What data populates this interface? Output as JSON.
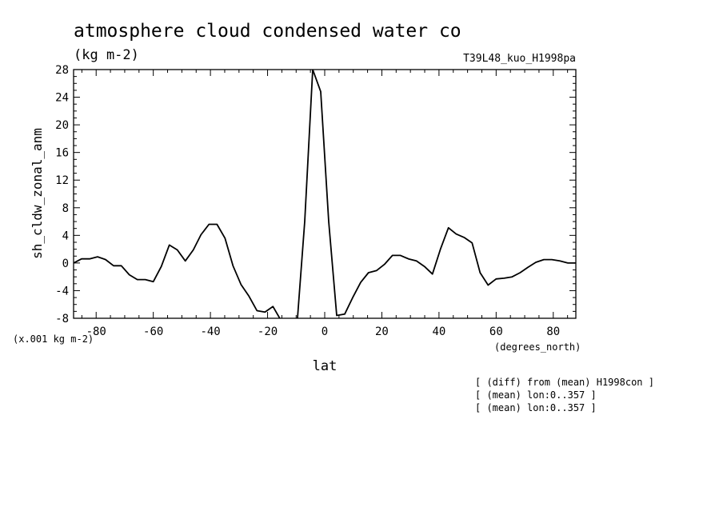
{
  "chart_data": {
    "type": "line",
    "title": "atmosphere cloud condensed water co",
    "subtitle": "(kg m-2)",
    "run_label": "T39L48_kuo_H1998pa",
    "ylabel": "sh_cldw_zonal_anm",
    "y_scale_note": "(x.001 kg m-2)",
    "xlabel": "lat",
    "x_units": "(degrees_north)",
    "xlim": [
      -87.9,
      87.9
    ],
    "ylim": [
      -8,
      28
    ],
    "x_ticks": [
      -80,
      -60,
      -40,
      -20,
      0,
      20,
      40,
      60,
      80
    ],
    "x_tick_labels": [
      "-80",
      "-60",
      "-40",
      "-20",
      "0",
      "20",
      "40",
      "60",
      "80"
    ],
    "y_ticks": [
      -8,
      -4,
      0,
      4,
      8,
      12,
      16,
      20,
      24,
      28
    ],
    "y_tick_labels": [
      "-8",
      "-4",
      "0",
      "4",
      "8",
      "12",
      "16",
      "20",
      "24",
      "28"
    ],
    "grid": false,
    "notes": [
      "[ (diff) from (mean) H1998con ]",
      "[ (mean) lon:0..357 ]",
      "[ (mean) lon:0..357 ]"
    ],
    "line_color": "#000000",
    "series": [
      {
        "x": [
          -87.9,
          -85.1,
          -82.3,
          -79.5,
          -76.7,
          -73.9,
          -71.2,
          -68.4,
          -65.6,
          -62.8,
          -60.0,
          -57.2,
          -54.4,
          -51.6,
          -48.8,
          -46.0,
          -43.3,
          -40.5,
          -37.7,
          -34.9,
          -32.1,
          -29.3,
          -26.5,
          -23.7,
          -20.9,
          -18.1,
          -15.3,
          -12.6,
          -9.8,
          -7.0,
          -4.2,
          -1.4,
          1.4,
          4.2,
          7.0,
          9.8,
          12.6,
          15.3,
          18.1,
          20.9,
          23.7,
          26.5,
          29.3,
          32.1,
          34.9,
          37.7,
          40.5,
          43.3,
          46.0,
          48.8,
          51.6,
          54.4,
          57.2,
          60.0,
          62.8,
          65.6,
          68.4,
          71.2,
          73.9,
          76.7,
          79.5,
          82.3,
          85.1,
          87.9
        ],
        "values": [
          0.0,
          0.6,
          0.6,
          0.9,
          0.5,
          -0.4,
          -0.4,
          -1.7,
          -2.4,
          -2.4,
          -2.7,
          -0.5,
          2.6,
          1.9,
          0.3,
          1.9,
          4.1,
          5.6,
          5.6,
          3.6,
          -0.4,
          -3.1,
          -4.8,
          -6.9,
          -7.1,
          -6.3,
          -8.3,
          -10.5,
          -9.5,
          6.0,
          28.0,
          24.8,
          6.0,
          -7.6,
          -7.4,
          -5.0,
          -2.8,
          -1.4,
          -1.1,
          -0.2,
          1.1,
          1.1,
          0.6,
          0.3,
          -0.5,
          -1.6,
          2.0,
          5.1,
          4.2,
          3.7,
          2.9,
          -1.4,
          -3.2,
          -2.3,
          -2.2,
          -2.0,
          -1.4,
          -0.6,
          0.1,
          0.5,
          0.5,
          0.3,
          0.0,
          0.0
        ]
      }
    ]
  }
}
